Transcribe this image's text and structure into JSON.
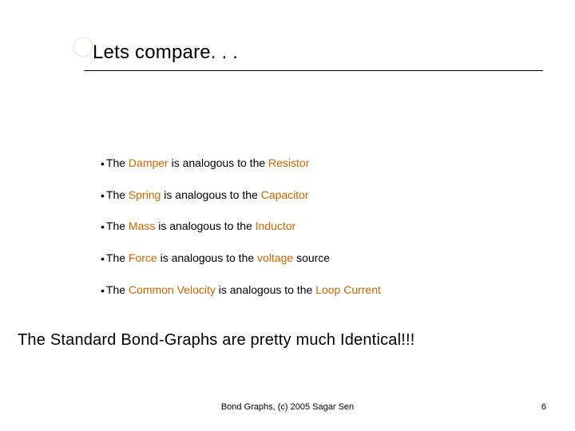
{
  "title": "Lets compare. . .",
  "bullets": [
    {
      "pre": "The ",
      "h1": "Damper",
      "mid": " is analogous to the ",
      "h2": "Resistor",
      "post": ""
    },
    {
      "pre": "The ",
      "h1": "Spring",
      "mid": " is analogous to the ",
      "h2": "Capacitor",
      "post": ""
    },
    {
      "pre": "The ",
      "h1": "Mass",
      "mid": " is analogous to the ",
      "h2": "Inductor",
      "post": ""
    },
    {
      "pre": "The ",
      "h1": "Force",
      "mid": " is analogous to the ",
      "h2": "voltage",
      "post": " source"
    },
    {
      "pre": "The ",
      "h1": "Common Velocity",
      "mid": " is analogous to the ",
      "h2": "Loop Current",
      "post": ""
    }
  ],
  "conclusion": "The Standard Bond-Graphs are pretty much Identical!!!",
  "footer_center": "Bond Graphs, (c) 2005 Sagar Sen",
  "page_number": "6",
  "colors": {
    "highlight": "#cc6600",
    "text": "#000000",
    "background": "#ffffff",
    "circle": "#e8dfc8"
  },
  "fontsize": {
    "title": 24,
    "bullet": 14,
    "conclusion": 20,
    "footer": 11
  }
}
